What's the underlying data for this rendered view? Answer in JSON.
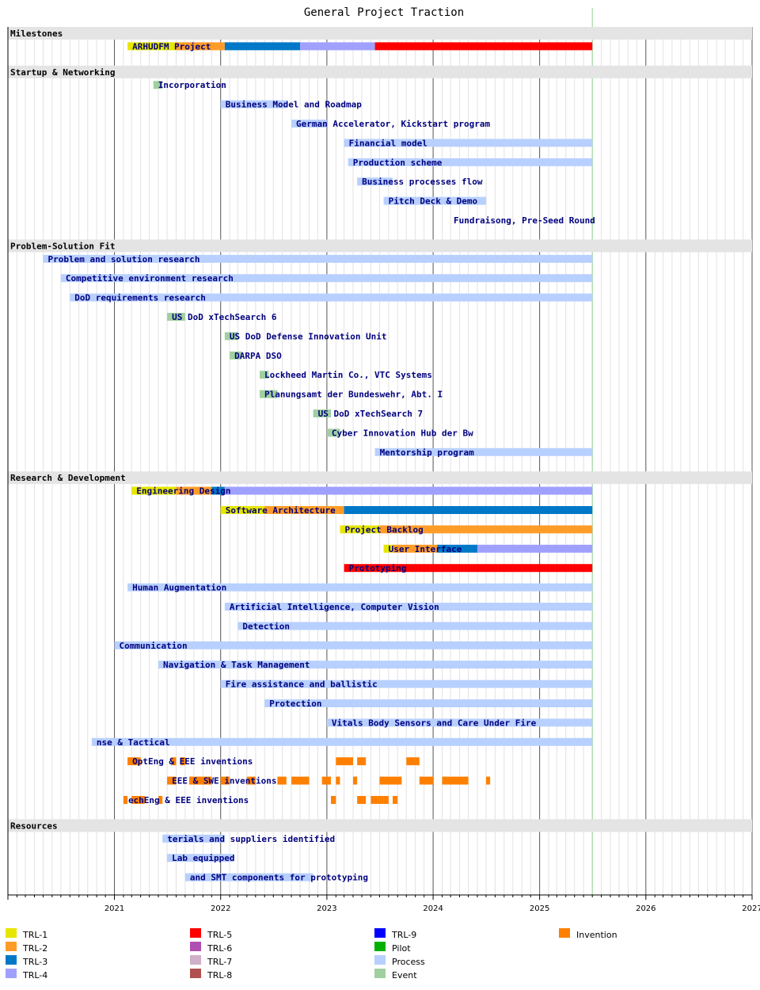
{
  "chart_data": {
    "type": "gantt",
    "title": "General Project Traction",
    "xlim": [
      "2020-01-01",
      "2027-01-01"
    ],
    "x_ticks": [
      "2021",
      "2022",
      "2023",
      "2024",
      "2025",
      "2026",
      "2027"
    ],
    "today_marker": "2025-07-01",
    "colors": {
      "TRL-1": "#e6e600",
      "TRL-2": "#ff9c28",
      "TRL-3": "#0078c8",
      "TRL-4": "#a0a0ff",
      "TRL-5": "#ff0000",
      "TRL-6": "#b050b0",
      "TRL-7": "#d0b0c8",
      "TRL-8": "#b05050",
      "TRL-9": "#0000ff",
      "Pilot": "#00b000",
      "Process": "#b8d0ff",
      "Event": "#a0d0a0",
      "Invention": "#ff8000"
    },
    "legend": [
      [
        "TRL-1",
        "TRL-2",
        "TRL-3",
        "TRL-4"
      ],
      [
        "TRL-5",
        "TRL-6",
        "TRL-7",
        "TRL-8"
      ],
      [
        "TRL-9",
        "Pilot",
        "Process",
        "Event"
      ],
      [
        "Invention"
      ]
    ],
    "sections": [
      {
        "name": "Milestones",
        "tasks": [
          {
            "label": "ARHUDFM Project",
            "segments": [
              [
                "2021-02-15",
                "2021-08-01",
                "TRL-1"
              ],
              [
                "2021-08-01",
                "2022-01-15",
                "TRL-2"
              ],
              [
                "2022-01-15",
                "2022-10-01",
                "TRL-3"
              ],
              [
                "2022-10-01",
                "2023-06-15",
                "TRL-4"
              ],
              [
                "2023-06-15",
                "2025-07-01",
                "TRL-5"
              ]
            ]
          }
        ]
      },
      {
        "name": "Startup & Networking",
        "tasks": [
          {
            "label": "Incorporation",
            "segments": [
              [
                "2021-05-15",
                "2021-06-15",
                "Event"
              ]
            ]
          },
          {
            "label": "Business Model and Roadmap",
            "segments": [
              [
                "2022-01-01",
                "2022-08-15",
                "Process"
              ]
            ]
          },
          {
            "label": "German Accelerator, Kickstart program",
            "segments": [
              [
                "2022-09-01",
                "2023-01-01",
                "Process"
              ]
            ]
          },
          {
            "label": "Financial model",
            "segments": [
              [
                "2023-03-01",
                "2025-07-01",
                "Process"
              ]
            ]
          },
          {
            "label": "Production scheme",
            "segments": [
              [
                "2023-03-15",
                "2025-07-01",
                "Process"
              ]
            ]
          },
          {
            "label": "Business processes flow",
            "segments": [
              [
                "2023-04-15",
                "2023-08-15",
                "Process"
              ]
            ]
          },
          {
            "label": "Pitch Deck & Demo",
            "segments": [
              [
                "2023-07-15",
                "2024-07-01",
                "Process"
              ]
            ]
          },
          {
            "label": "Fundraisong, Pre-Seed Round",
            "segments": []
          }
        ]
      },
      {
        "name": "Problem-Solution Fit",
        "tasks": [
          {
            "label": "Problem and solution research",
            "segments": [
              [
                "2020-05-01",
                "2025-07-01",
                "Process"
              ]
            ]
          },
          {
            "label": "Competitive environment research",
            "segments": [
              [
                "2020-07-01",
                "2025-07-01",
                "Process"
              ]
            ]
          },
          {
            "label": "DoD requirements research",
            "segments": [
              [
                "2020-08-01",
                "2025-07-01",
                "Process"
              ]
            ]
          },
          {
            "label": "US DoD xTechSearch 6",
            "segments": [
              [
                "2021-07-01",
                "2021-09-01",
                "Event"
              ]
            ]
          },
          {
            "label": "US DoD Defense Innovation Unit",
            "segments": [
              [
                "2022-01-15",
                "2022-03-01",
                "Event"
              ]
            ]
          },
          {
            "label": "DARPA DSO",
            "segments": [
              [
                "2022-02-01",
                "2022-03-15",
                "Event"
              ]
            ]
          },
          {
            "label": "Lockheed Martin Co., VTC Systems",
            "segments": [
              [
                "2022-05-15",
                "2022-06-15",
                "Event"
              ]
            ]
          },
          {
            "label": "Planungsamt der Bundeswehr, Abt. I",
            "segments": [
              [
                "2022-05-15",
                "2022-07-15",
                "Event"
              ]
            ]
          },
          {
            "label": "US DoD xTechSearch 7",
            "segments": [
              [
                "2022-11-15",
                "2023-01-15",
                "Event"
              ]
            ]
          },
          {
            "label": "Cyber Innovation Hub der Bw",
            "segments": [
              [
                "2023-01-01",
                "2023-02-15",
                "Event"
              ]
            ]
          },
          {
            "label": "Mentorship program",
            "segments": [
              [
                "2023-06-15",
                "2025-07-01",
                "Process"
              ]
            ]
          }
        ]
      },
      {
        "name": "Research & Development",
        "tasks": [
          {
            "label": "Engineering Design",
            "segments": [
              [
                "2021-03-01",
                "2021-08-01",
                "TRL-1"
              ],
              [
                "2021-08-01",
                "2021-12-01",
                "TRL-2"
              ],
              [
                "2021-12-01",
                "2022-01-15",
                "TRL-3"
              ],
              [
                "2022-01-15",
                "2025-07-01",
                "TRL-4"
              ]
            ]
          },
          {
            "label": "Software Architecture",
            "segments": [
              [
                "2022-01-01",
                "2022-06-01",
                "TRL-1"
              ],
              [
                "2022-06-01",
                "2023-03-01",
                "TRL-2"
              ],
              [
                "2023-03-01",
                "2025-07-01",
                "TRL-3"
              ]
            ]
          },
          {
            "label": "Project Backlog",
            "segments": [
              [
                "2023-02-15",
                "2023-07-01",
                "TRL-1"
              ],
              [
                "2023-07-01",
                "2025-07-01",
                "TRL-2"
              ]
            ]
          },
          {
            "label": "User Interface",
            "segments": [
              [
                "2023-07-15",
                "2023-08-15",
                "TRL-1"
              ],
              [
                "2023-08-15",
                "2024-01-15",
                "TRL-2"
              ],
              [
                "2024-01-15",
                "2024-06-01",
                "TRL-3"
              ],
              [
                "2024-06-01",
                "2025-07-01",
                "TRL-4"
              ]
            ]
          },
          {
            "label": "Prototyping",
            "segments": [
              [
                "2023-03-01",
                "2025-07-01",
                "TRL-5"
              ]
            ]
          },
          {
            "label": "Human Augmentation",
            "segments": [
              [
                "2021-02-15",
                "2025-07-01",
                "Process"
              ]
            ]
          },
          {
            "label": "Artificial Intelligence, Computer Vision",
            "segments": [
              [
                "2022-01-15",
                "2025-07-01",
                "Process"
              ]
            ]
          },
          {
            "label": "Detection",
            "segments": [
              [
                "2022-03-01",
                "2025-07-01",
                "Process"
              ]
            ]
          },
          {
            "label": "Communication",
            "segments": [
              [
                "2021-01-01",
                "2025-07-01",
                "Process"
              ]
            ]
          },
          {
            "label": "Navigation & Task Management",
            "segments": [
              [
                "2021-06-01",
                "2025-07-01",
                "Process"
              ]
            ]
          },
          {
            "label": "Fire assistance and ballistic",
            "segments": [
              [
                "2022-01-01",
                "2025-07-01",
                "Process"
              ]
            ]
          },
          {
            "label": "Protection",
            "segments": [
              [
                "2022-06-01",
                "2025-07-01",
                "Process"
              ]
            ]
          },
          {
            "label": "Vitals Body Sensors and Care Under Fire",
            "segments": [
              [
                "2023-01-01",
                "2025-07-01",
                "Process"
              ]
            ]
          },
          {
            "label": "nse & Tactical",
            "segments": [
              [
                "2020-10-15",
                "2025-07-01",
                "Process"
              ]
            ]
          },
          {
            "label": "OptEng & EEE inventions",
            "segments": [
              [
                "2021-02-15",
                "2021-04-01",
                "Invention"
              ],
              [
                "2021-07-15",
                "2021-08-01",
                "Invention"
              ],
              [
                "2021-08-15",
                "2021-09-01",
                "Invention"
              ],
              [
                "2023-02-01",
                "2023-04-01",
                "Invention"
              ],
              [
                "2023-04-15",
                "2023-05-15",
                "Invention"
              ],
              [
                "2023-10-01",
                "2023-11-15",
                "Invention"
              ]
            ]
          },
          {
            "label": "EEE & SWE inventions",
            "segments": [
              [
                "2021-07-01",
                "2021-08-01",
                "Invention"
              ],
              [
                "2021-09-15",
                "2021-12-01",
                "Invention"
              ],
              [
                "2022-01-01",
                "2022-02-01",
                "Invention"
              ],
              [
                "2022-04-01",
                "2022-05-01",
                "Invention"
              ],
              [
                "2022-07-15",
                "2022-08-15",
                "Invention"
              ],
              [
                "2022-09-01",
                "2022-11-01",
                "Invention"
              ],
              [
                "2022-12-15",
                "2023-01-15",
                "Invention"
              ],
              [
                "2023-02-01",
                "2023-02-15",
                "Invention"
              ],
              [
                "2023-04-01",
                "2023-04-15",
                "Invention"
              ],
              [
                "2023-07-01",
                "2023-08-15",
                "Invention"
              ],
              [
                "2023-08-15",
                "2023-09-15",
                "Invention"
              ],
              [
                "2023-11-15",
                "2024-01-01",
                "Invention"
              ],
              [
                "2024-02-01",
                "2024-05-01",
                "Invention"
              ],
              [
                "2024-07-01",
                "2024-07-15",
                "Invention"
              ]
            ]
          },
          {
            "label": "echEng & EEE inventions",
            "segments": [
              [
                "2021-02-01",
                "2021-02-15",
                "Invention"
              ],
              [
                "2021-03-01",
                "2021-04-15",
                "Invention"
              ],
              [
                "2021-06-01",
                "2021-06-15",
                "Invention"
              ],
              [
                "2023-01-15",
                "2023-02-01",
                "Invention"
              ],
              [
                "2023-04-15",
                "2023-05-15",
                "Invention"
              ],
              [
                "2023-06-01",
                "2023-07-01",
                "Invention"
              ],
              [
                "2023-07-01",
                "2023-07-15",
                "Invention"
              ],
              [
                "2023-07-15",
                "2023-08-01",
                "Invention"
              ],
              [
                "2023-08-15",
                "2023-09-01",
                "Invention"
              ]
            ]
          }
        ]
      },
      {
        "name": "Resources",
        "tasks": [
          {
            "label": "terials and suppliers identified",
            "segments": [
              [
                "2021-06-15",
                "2022-01-15",
                "Process"
              ]
            ]
          },
          {
            "label": "Lab equipped",
            "segments": [
              [
                "2021-07-01",
                "2022-02-15",
                "Process"
              ]
            ]
          },
          {
            "label": "and SMT components for prototyping",
            "segments": [
              [
                "2021-09-01",
                "2022-11-15",
                "Process"
              ]
            ]
          }
        ]
      }
    ]
  }
}
